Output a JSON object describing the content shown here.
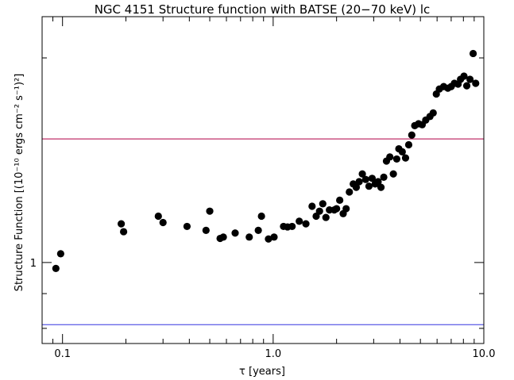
{
  "chart_data": {
    "type": "scatter",
    "title": "NGC 4151 Structure function with BATSE (20−70 keV) lc",
    "xlabel": "τ [years]",
    "ylabel": "Structure Function [(10⁻¹⁰ ergs cm⁻² s⁻¹)²]",
    "x_scale": "log",
    "y_scale": "log",
    "xlim": [
      0.08,
      10.0
    ],
    "ylim": [
      0.76,
      2.3
    ],
    "x_ticks": [
      {
        "value": 0.1,
        "label": "0.1"
      },
      {
        "value": 1.0,
        "label": "1.0"
      },
      {
        "value": 10.0,
        "label": "10.0"
      }
    ],
    "y_ticks": [
      {
        "value": 1.0,
        "label": "1"
      }
    ],
    "grid": false,
    "reference_lines": [
      {
        "y": 1.52,
        "color": "#c0306a"
      },
      {
        "y": 0.81,
        "color": "#6a6ae8"
      }
    ],
    "marker_color": "#000000",
    "points": [
      [
        0.093,
        0.98
      ],
      [
        0.098,
        1.03
      ],
      [
        0.19,
        1.14
      ],
      [
        0.195,
        1.11
      ],
      [
        0.285,
        1.17
      ],
      [
        0.3,
        1.145
      ],
      [
        0.39,
        1.13
      ],
      [
        0.48,
        1.115
      ],
      [
        0.5,
        1.19
      ],
      [
        0.56,
        1.085
      ],
      [
        0.58,
        1.09
      ],
      [
        0.66,
        1.105
      ],
      [
        0.77,
        1.09
      ],
      [
        0.85,
        1.115
      ],
      [
        0.88,
        1.17
      ],
      [
        0.95,
        1.083
      ],
      [
        1.01,
        1.09
      ],
      [
        1.12,
        1.13
      ],
      [
        1.17,
        1.128
      ],
      [
        1.23,
        1.13
      ],
      [
        1.33,
        1.15
      ],
      [
        1.43,
        1.14
      ],
      [
        1.53,
        1.21
      ],
      [
        1.6,
        1.17
      ],
      [
        1.66,
        1.19
      ],
      [
        1.72,
        1.22
      ],
      [
        1.78,
        1.165
      ],
      [
        1.85,
        1.195
      ],
      [
        1.95,
        1.195
      ],
      [
        2.0,
        1.2
      ],
      [
        2.07,
        1.235
      ],
      [
        2.15,
        1.18
      ],
      [
        2.22,
        1.2
      ],
      [
        2.3,
        1.27
      ],
      [
        2.4,
        1.305
      ],
      [
        2.48,
        1.29
      ],
      [
        2.56,
        1.315
      ],
      [
        2.65,
        1.35
      ],
      [
        2.75,
        1.325
      ],
      [
        2.85,
        1.295
      ],
      [
        2.95,
        1.33
      ],
      [
        3.05,
        1.305
      ],
      [
        3.15,
        1.315
      ],
      [
        3.25,
        1.29
      ],
      [
        3.35,
        1.335
      ],
      [
        3.45,
        1.41
      ],
      [
        3.58,
        1.43
      ],
      [
        3.72,
        1.35
      ],
      [
        3.86,
        1.42
      ],
      [
        3.95,
        1.47
      ],
      [
        4.1,
        1.455
      ],
      [
        4.25,
        1.425
      ],
      [
        4.4,
        1.49
      ],
      [
        4.55,
        1.54
      ],
      [
        4.7,
        1.59
      ],
      [
        4.9,
        1.6
      ],
      [
        5.1,
        1.595
      ],
      [
        5.3,
        1.62
      ],
      [
        5.55,
        1.64
      ],
      [
        5.75,
        1.66
      ],
      [
        5.95,
        1.77
      ],
      [
        6.15,
        1.8
      ],
      [
        6.45,
        1.815
      ],
      [
        6.75,
        1.805
      ],
      [
        7.0,
        1.815
      ],
      [
        7.25,
        1.835
      ],
      [
        7.55,
        1.83
      ],
      [
        7.75,
        1.86
      ],
      [
        8.05,
        1.88
      ],
      [
        8.3,
        1.82
      ],
      [
        8.6,
        1.86
      ],
      [
        8.9,
        2.03
      ],
      [
        9.15,
        1.835
      ]
    ]
  }
}
